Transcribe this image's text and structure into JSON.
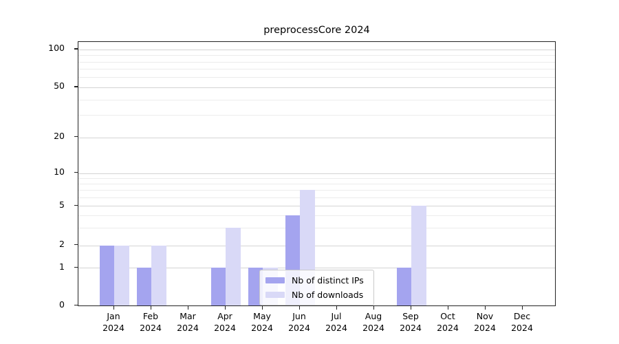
{
  "title": "preprocessCore 2024",
  "chart_data": {
    "type": "bar",
    "title": "preprocessCore 2024",
    "categories": [
      "Jan",
      "Feb",
      "Mar",
      "Apr",
      "May",
      "Jun",
      "Jul",
      "Aug",
      "Sep",
      "Oct",
      "Nov",
      "Dec"
    ],
    "year_label": "2024",
    "series": [
      {
        "name": "Nb of distinct IPs",
        "color": "#a4a4ef",
        "values": [
          2,
          1,
          0,
          1,
          1,
          4,
          0,
          0,
          1,
          0,
          0,
          0
        ]
      },
      {
        "name": "Nb of downloads",
        "color": "#d9d9f7",
        "values": [
          2,
          2,
          0,
          3,
          1,
          7,
          0,
          0,
          5,
          0,
          0,
          0
        ]
      }
    ],
    "yticks": [
      0,
      1,
      2,
      5,
      10,
      20,
      50,
      100
    ],
    "yscale": "log-like (linear 0-1, log above)",
    "ylim": [
      0,
      115
    ],
    "grid": true,
    "legend_position": "bottom-center"
  },
  "colors": {
    "major_grid": "#d4d4d4",
    "minor_grid": "#ececec",
    "spine": "#222222"
  }
}
